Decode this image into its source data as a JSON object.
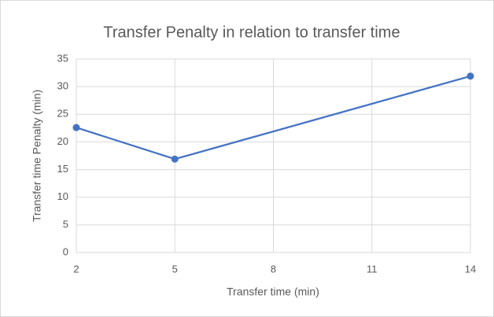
{
  "chart_data": {
    "type": "line",
    "title": "Transfer Penalty in relation to transfer time",
    "x_label": "Transfer time (min)",
    "y_label": "Transfer time Penalty (min)",
    "x": [
      2,
      5,
      14
    ],
    "series": [
      {
        "name": "Transfer time Penalty",
        "color": "#4472c4",
        "values": [
          22.6,
          16.9,
          31.9
        ]
      }
    ],
    "xlim": [
      2,
      14
    ],
    "xticks": [
      2,
      5,
      8,
      11,
      14
    ],
    "ylim": [
      0,
      35
    ],
    "yticks": [
      0,
      5,
      10,
      15,
      20,
      25,
      30,
      35
    ],
    "grid": true
  }
}
